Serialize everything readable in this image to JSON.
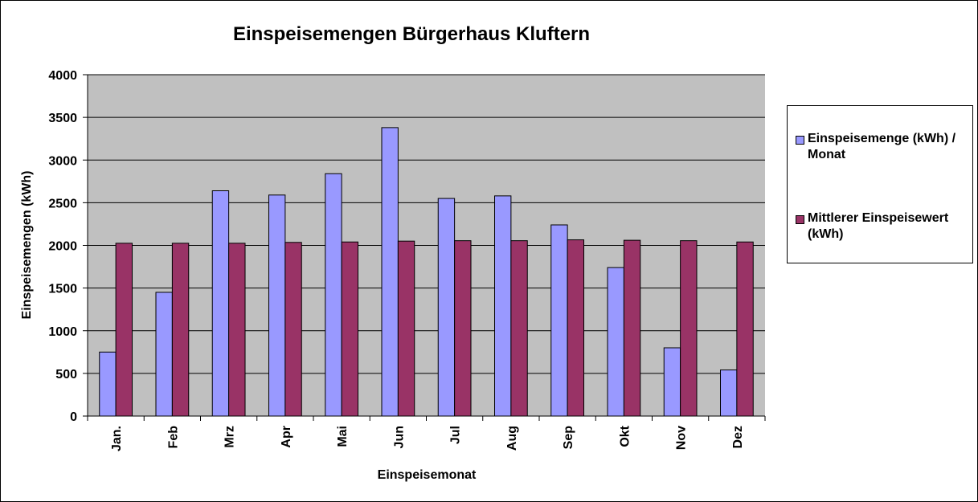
{
  "colors": {
    "series1": "#9999ff",
    "series2": "#993366",
    "plot_bg": "#c0c0c0",
    "grid": "#000000"
  },
  "chart_data": {
    "type": "bar",
    "title": "Einspeisemengen Bürgerhaus Kluftern",
    "xlabel": "Einspeisemonat",
    "ylabel": "Einspeisemengen (kWh)",
    "ylim": [
      0,
      4000
    ],
    "yticks": [
      "0",
      "500",
      "1000",
      "1500",
      "2000",
      "2500",
      "3000",
      "3500",
      "4000"
    ],
    "grid": true,
    "legend_position": "right",
    "categories": [
      "Jan.",
      "Feb",
      "Mrz",
      "Apr",
      "Mai",
      "Jun",
      "Jul",
      "Aug",
      "Sep",
      "Okt",
      "Nov",
      "Dez"
    ],
    "series": [
      {
        "name": "Einspeisemenge (kWh) / Monat",
        "values": [
          750,
          1450,
          2640,
          2590,
          2840,
          3380,
          2550,
          2580,
          2240,
          1740,
          800,
          540
        ]
      },
      {
        "name": "Mittlerer Einspeisewert (kWh)",
        "values": [
          2025,
          2025,
          2025,
          2035,
          2040,
          2050,
          2055,
          2055,
          2065,
          2060,
          2055,
          2040
        ]
      }
    ]
  },
  "legend": {
    "item1_line1": "Einspeisemenge (kWh) /",
    "item1_line2": "Monat",
    "item2_line1": "Mittlerer Einspeisewert",
    "item2_line2": "(kWh)"
  }
}
